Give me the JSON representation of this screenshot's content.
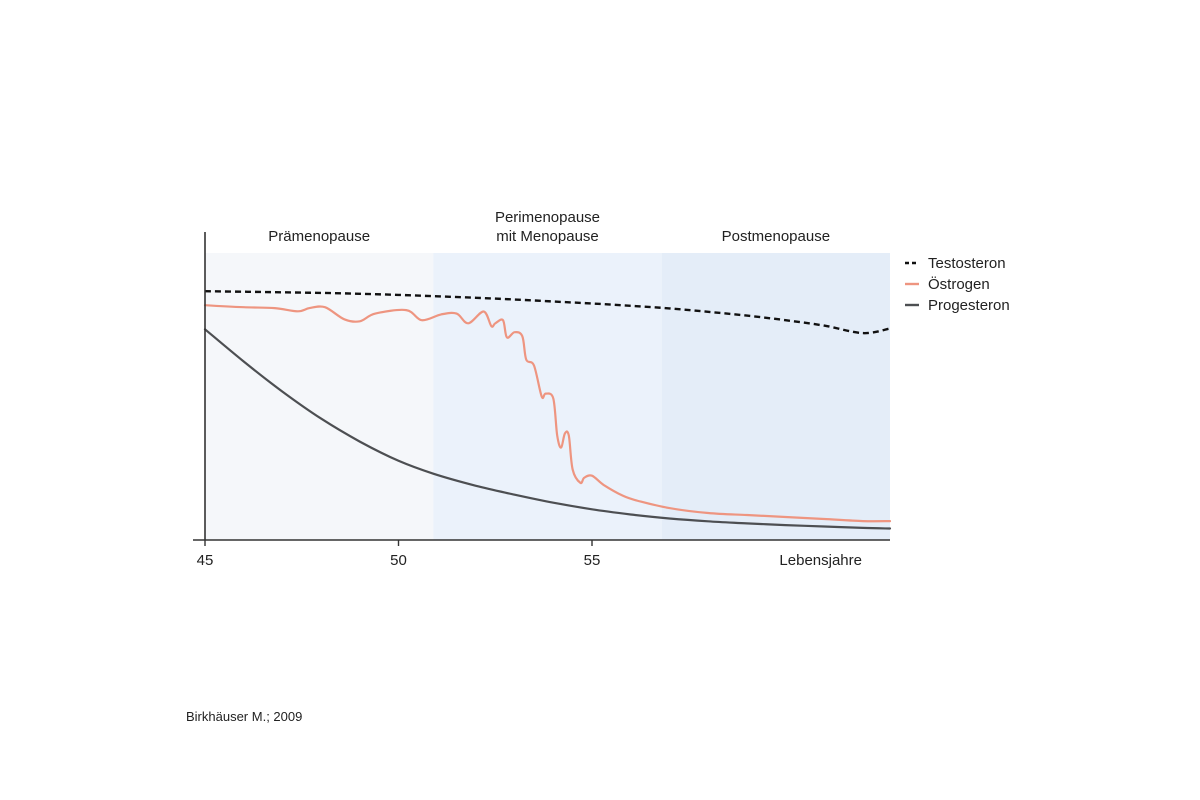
{
  "source": "Birkhäuser M.; 2009",
  "colors": {
    "testosteron": "#111111",
    "oestrogen": "#ee9580",
    "progesteron": "#4d4f52",
    "phase_prae": "#f5f7fa",
    "phase_peri": "#ebf2fb",
    "phase_post": "#e4edf8",
    "axis": "#333333"
  },
  "chart_data": {
    "type": "line",
    "xlabel": "Lebensjahre",
    "ylabel": "",
    "xlim": [
      45,
      62.7
    ],
    "ylim": [
      0,
      100
    ],
    "x_ticks": [
      {
        "value": 45,
        "label": "45"
      },
      {
        "value": 50,
        "label": "50"
      },
      {
        "value": 55,
        "label": "55"
      }
    ],
    "phases": [
      {
        "label": [
          "Prämenopause"
        ],
        "x_start": 45,
        "x_end": 50.9
      },
      {
        "label": [
          "Perimenopause",
          "mit Menopause"
        ],
        "x_start": 50.9,
        "x_end": 56.8
      },
      {
        "label": [
          "Postmenopause"
        ],
        "x_start": 56.8,
        "x_end": 62.7
      }
    ],
    "legend": {
      "position": "right"
    },
    "series": [
      {
        "name": "Testosteron",
        "style": "dashed",
        "x": [
          45,
          46,
          47,
          48,
          49,
          50,
          51,
          52,
          53,
          54,
          55,
          56,
          57,
          58,
          59,
          60,
          61,
          62,
          62.7
        ],
        "y": [
          86.7,
          86.5,
          86.3,
          86.1,
          85.8,
          85.4,
          84.9,
          84.4,
          83.8,
          83.1,
          82.4,
          81.6,
          80.7,
          79.5,
          78.2,
          76.6,
          74.7,
          72.1,
          73.7
        ]
      },
      {
        "name": "Östrogen",
        "style": "solid",
        "x": [
          45,
          46,
          46.8,
          47.4,
          47.7,
          48.1,
          48.6,
          49.0,
          49.4,
          50.2,
          50.6,
          51.1,
          51.5,
          51.8,
          52.2,
          52.4,
          52.5,
          52.7,
          52.8,
          53.0,
          53.2,
          53.3,
          53.5,
          53.7,
          53.8,
          54.0,
          54.1,
          54.2,
          54.3,
          54.4,
          54.5,
          54.7,
          54.8,
          55.0,
          55.3,
          55.8,
          56.2,
          57.0,
          58.0,
          59.0,
          60.0,
          61.0,
          62.0,
          62.7
        ],
        "y": [
          81.8,
          81.1,
          80.8,
          79.7,
          80.8,
          81.1,
          76.9,
          76.2,
          78.9,
          80.1,
          76.6,
          78.6,
          78.9,
          75.5,
          79.6,
          74.5,
          75.5,
          76.6,
          70.6,
          72.4,
          71.0,
          62.9,
          60.8,
          50.0,
          51.0,
          49.3,
          36.4,
          32.2,
          37.1,
          36.4,
          24.5,
          19.9,
          21.7,
          22.4,
          19.2,
          15.4,
          13.6,
          11.1,
          9.4,
          8.7,
          8.0,
          7.3,
          6.6,
          6.6
        ]
      },
      {
        "name": "Progesteron",
        "style": "solid",
        "x": [
          45,
          46,
          47,
          48,
          49,
          50,
          50.9,
          52,
          53,
          54,
          55,
          56,
          57,
          58,
          59,
          60,
          61,
          62,
          62.7
        ],
        "y": [
          73.4,
          62.2,
          51.7,
          42.3,
          34.3,
          27.6,
          23.1,
          18.9,
          15.8,
          13.0,
          10.7,
          8.9,
          7.5,
          6.5,
          5.8,
          5.2,
          4.7,
          4.2,
          4.0
        ]
      }
    ]
  }
}
